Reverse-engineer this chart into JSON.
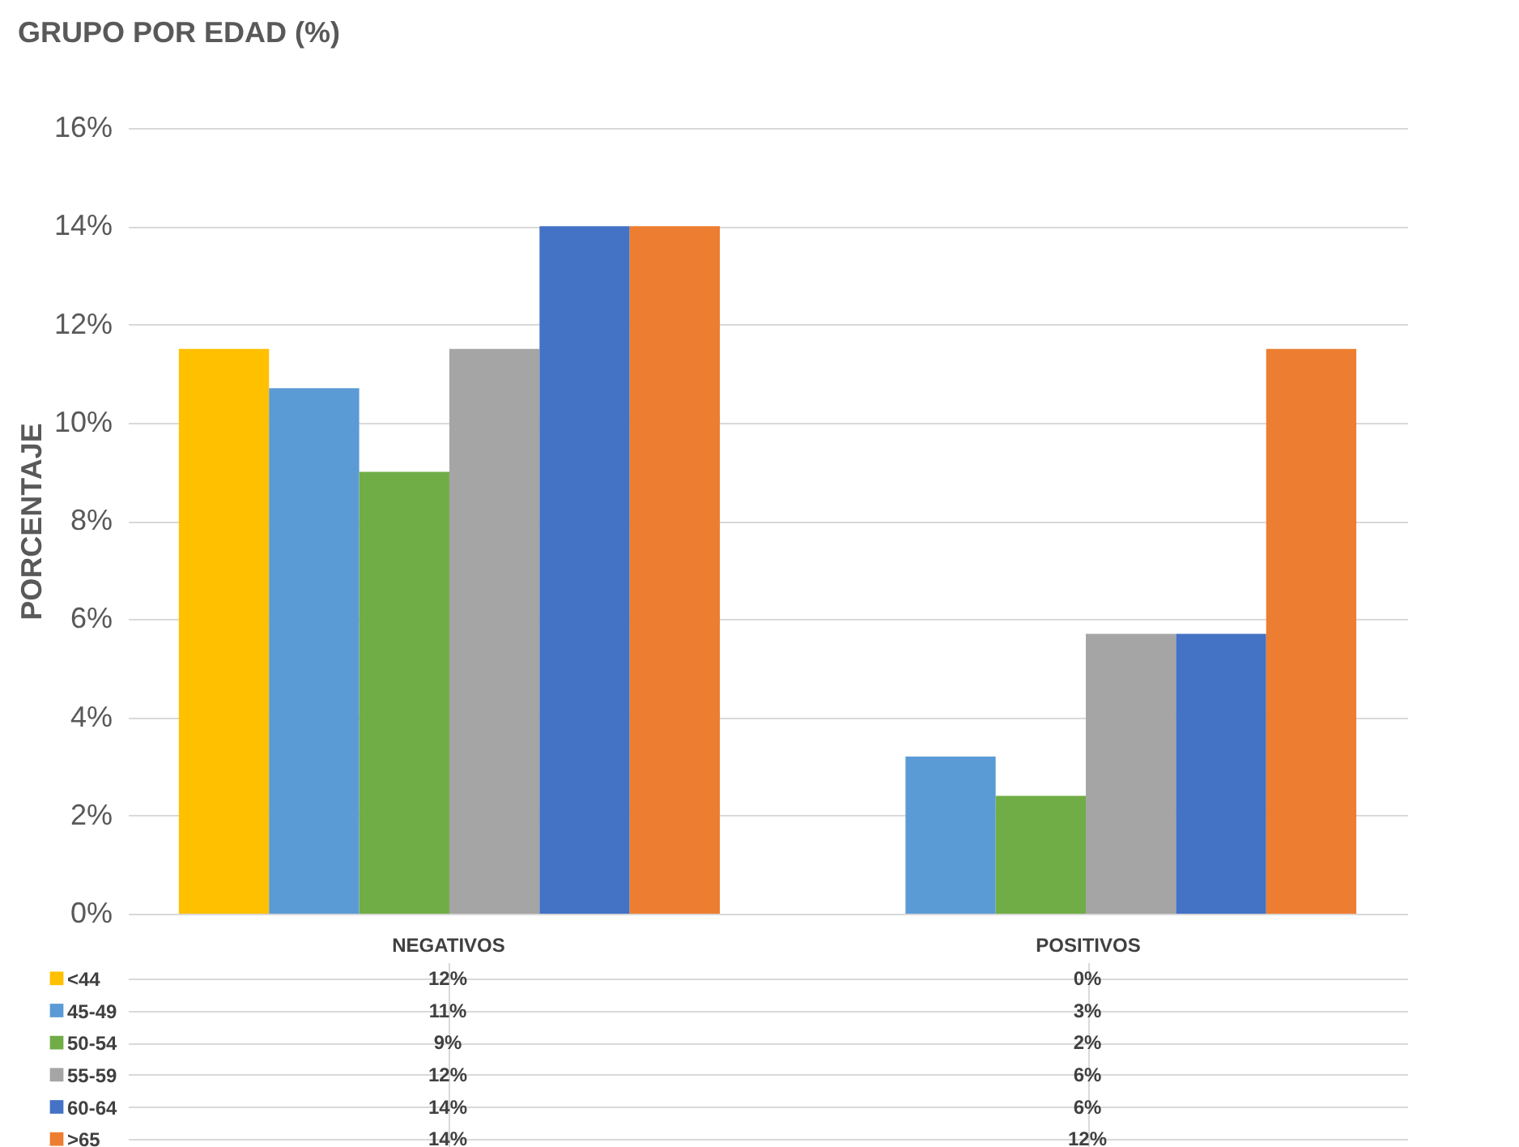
{
  "chart_data": {
    "type": "bar",
    "title": "GRUPO POR EDAD (%)",
    "ylabel": "PORCENTAJE",
    "categories": [
      "NEGATIVOS",
      "POSITIVOS"
    ],
    "series": [
      {
        "name": "<44",
        "color": "#ffc000",
        "values": [
          11.5,
          0
        ],
        "value_labels": [
          "12%",
          "0%"
        ]
      },
      {
        "name": "45-49",
        "color": "#5b9bd5",
        "values": [
          10.7,
          3.2
        ],
        "value_labels": [
          "11%",
          "3%"
        ]
      },
      {
        "name": "50-54",
        "color": "#70ad47",
        "values": [
          9,
          2.4
        ],
        "value_labels": [
          "9%",
          "2%"
        ]
      },
      {
        "name": "55-59",
        "color": "#a5a5a5",
        "values": [
          11.5,
          5.7
        ],
        "value_labels": [
          "12%",
          "6%"
        ]
      },
      {
        "name": "60-64",
        "color": "#4472c4",
        "values": [
          14,
          5.7
        ],
        "value_labels": [
          "14%",
          "6%"
        ]
      },
      {
        "name": ">65",
        "color": "#ed7d31",
        "values": [
          14,
          11.5
        ],
        "value_labels": [
          "14%",
          "12%"
        ]
      }
    ],
    "ylim": [
      0,
      16
    ],
    "yticks": [
      {
        "value": 0,
        "label": "0%"
      },
      {
        "value": 2,
        "label": "2%"
      },
      {
        "value": 4,
        "label": "4%"
      },
      {
        "value": 6,
        "label": "6%"
      },
      {
        "value": 8,
        "label": "8%"
      },
      {
        "value": 10,
        "label": "10%"
      },
      {
        "value": 12,
        "label": "12%"
      },
      {
        "value": 14,
        "label": "14%"
      },
      {
        "value": 16,
        "label": "16%"
      }
    ],
    "grid": "y",
    "legend": "bottom"
  }
}
